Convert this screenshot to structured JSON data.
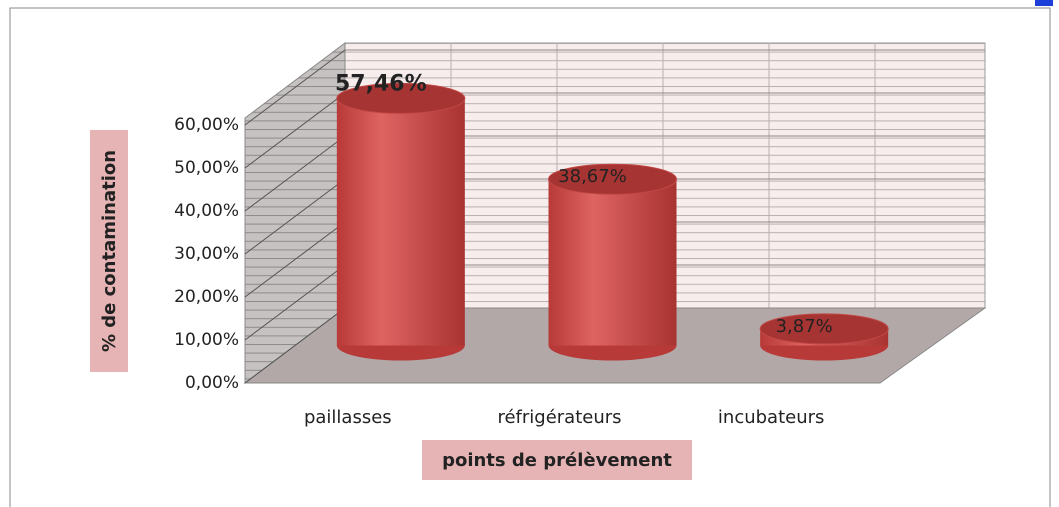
{
  "chart_data": {
    "type": "bar3d",
    "categories": [
      "paillasses",
      "réfrigérateurs",
      "incubateurs"
    ],
    "values": [
      57.46,
      38.67,
      3.87
    ],
    "value_labels": [
      "57,46%",
      "38,67%",
      "3,87%"
    ],
    "color": "#d0504d",
    "ylim": [
      0,
      60
    ],
    "yticks": [
      {
        "value": 0,
        "label": "0,00%"
      },
      {
        "value": 10,
        "label": "10,00%"
      },
      {
        "value": 20,
        "label": "20,00%"
      },
      {
        "value": 30,
        "label": "30,00%"
      },
      {
        "value": 40,
        "label": "40,00%"
      },
      {
        "value": 50,
        "label": "50,00%"
      },
      {
        "value": 60,
        "label": "60,00%"
      }
    ],
    "ylabel": "% de contamination",
    "xlabel": "points de prélèvement",
    "grid": true
  }
}
